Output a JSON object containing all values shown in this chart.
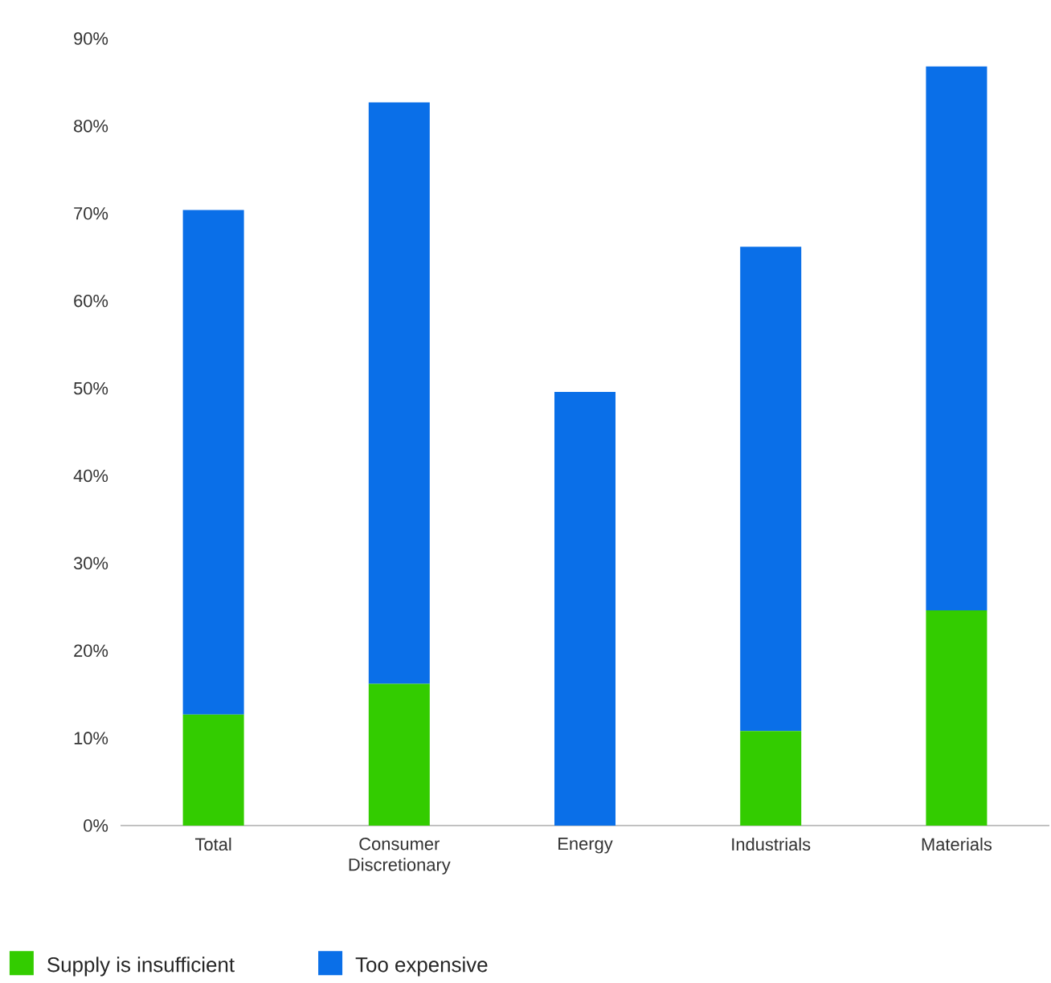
{
  "chart_data": {
    "type": "bar",
    "stacked": true,
    "categories": [
      "Total",
      "Consumer Discretionary",
      "Energy",
      "Industrials",
      "Materials"
    ],
    "series": [
      {
        "name": "Supply is insufficient",
        "color": "#33cc00",
        "values": [
          12.7,
          16.2,
          0,
          10.8,
          24.6
        ]
      },
      {
        "name": "Too expensive",
        "color": "#0a6fe8",
        "values": [
          57.7,
          66.5,
          49.6,
          55.4,
          62.2
        ]
      }
    ],
    "ylim": [
      0,
      90
    ],
    "yticks": [
      {
        "value": 0,
        "label": "0%"
      },
      {
        "value": 10,
        "label": "10%"
      },
      {
        "value": 20,
        "label": "20%"
      },
      {
        "value": 30,
        "label": "30%"
      },
      {
        "value": 40,
        "label": "40%"
      },
      {
        "value": 50,
        "label": "50%"
      },
      {
        "value": 60,
        "label": "60%"
      },
      {
        "value": 70,
        "label": "70%"
      },
      {
        "value": 80,
        "label": "80%"
      },
      {
        "value": 90,
        "label": "90%"
      }
    ],
    "legend": "bottom"
  }
}
